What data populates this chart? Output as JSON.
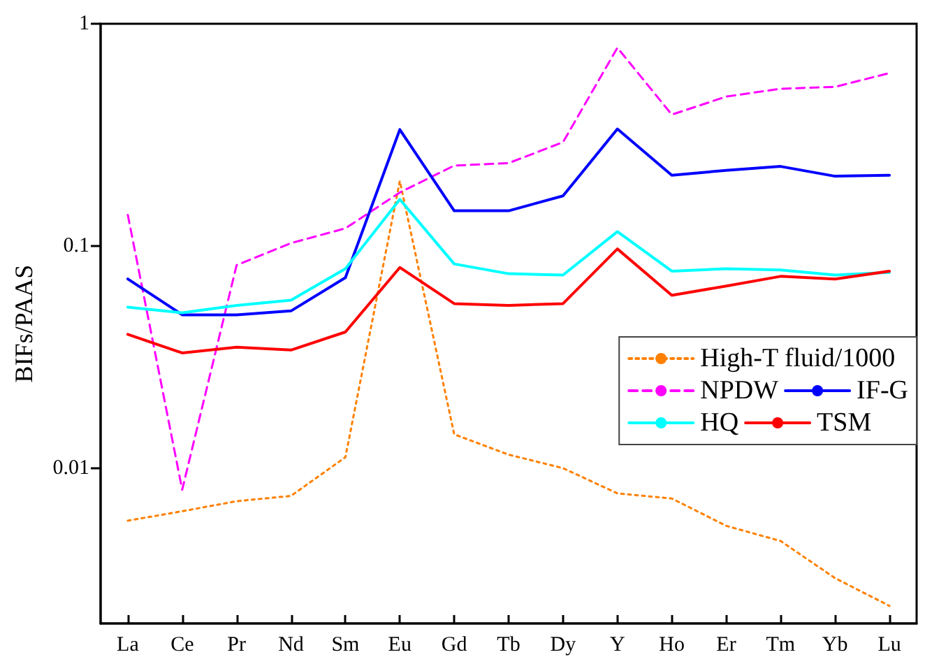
{
  "chart_data": {
    "type": "line",
    "ylabel": "BIFs/PAAS",
    "log": "y",
    "ylim": [
      0.002,
      1
    ],
    "yticks": [
      0.01,
      0.1,
      1
    ],
    "grid": false,
    "legend": "right",
    "marker": "none",
    "categories": [
      "La",
      "Ce",
      "Pr",
      "Nd",
      "Sm",
      "Eu",
      "Gd",
      "Tb",
      "Dy",
      "Y",
      "Ho",
      "Er",
      "Tm",
      "Yb",
      "Lu"
    ],
    "series": [
      {
        "name": "High-T fluid/1000",
        "color": "#ff8000",
        "line_style": "dotted",
        "values": [
          0.0058,
          0.0064,
          0.0071,
          0.0075,
          0.0112,
          0.196,
          0.0142,
          0.0115,
          0.01,
          0.0077,
          0.0073,
          0.0055,
          0.0047,
          0.0032,
          0.0024
        ]
      },
      {
        "name": "NPDW",
        "color": "#ff00ff",
        "line_style": "dashed",
        "values": [
          0.138,
          0.008,
          0.082,
          0.103,
          0.12,
          0.174,
          0.23,
          0.236,
          0.293,
          0.78,
          0.39,
          0.47,
          0.51,
          0.52,
          0.6
        ]
      },
      {
        "name": "IF-G",
        "color": "#0000ff",
        "line_style": "solid",
        "values": [
          0.071,
          0.049,
          0.049,
          0.051,
          0.072,
          0.334,
          0.144,
          0.144,
          0.168,
          0.336,
          0.208,
          0.219,
          0.228,
          0.206,
          0.208
        ]
      },
      {
        "name": "HQ",
        "color": "#00ffff",
        "line_style": "solid",
        "values": [
          0.053,
          0.05,
          0.054,
          0.057,
          0.079,
          0.162,
          0.083,
          0.075,
          0.074,
          0.116,
          0.077,
          0.079,
          0.078,
          0.074,
          0.076
        ]
      },
      {
        "name": "TSM",
        "color": "#ff0000",
        "line_style": "solid",
        "values": [
          0.04,
          0.033,
          0.035,
          0.034,
          0.041,
          0.08,
          0.055,
          0.054,
          0.055,
          0.097,
          0.06,
          0.066,
          0.073,
          0.071,
          0.077
        ]
      }
    ]
  }
}
